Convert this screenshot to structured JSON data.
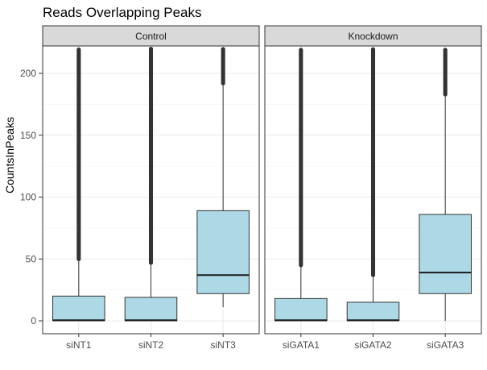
{
  "chart_data": {
    "type": "boxplot",
    "title": "Reads Overlapping Peaks",
    "ylabel": "CountsInPeaks",
    "xlabel": "",
    "ylim": [
      0,
      220
    ],
    "yticks": [
      0,
      50,
      100,
      150,
      200
    ],
    "grid": true,
    "box_fill": "#add8e6",
    "outlier_color": "#333333",
    "panels": [
      {
        "name": "Control",
        "groups": [
          {
            "label": "siNT1",
            "q1": 0,
            "median": 0.5,
            "q3": 20,
            "whisker_low": 0,
            "whisker_high": 50,
            "outlier_range": [
              50,
              220
            ]
          },
          {
            "label": "siNT2",
            "q1": 0,
            "median": 0.5,
            "q3": 19,
            "whisker_low": 0,
            "whisker_high": 47,
            "outlier_range": [
              47,
              220
            ]
          },
          {
            "label": "siNT3",
            "q1": 22,
            "median": 37,
            "q3": 89,
            "whisker_low": 11,
            "whisker_high": 192,
            "outlier_range": [
              192,
              220
            ]
          }
        ]
      },
      {
        "name": "Knockdown",
        "groups": [
          {
            "label": "siGATA1",
            "q1": 0,
            "median": 0.5,
            "q3": 18,
            "whisker_low": 0,
            "whisker_high": 45,
            "outlier_range": [
              45,
              220
            ]
          },
          {
            "label": "siGATA2",
            "q1": 0,
            "median": 0.5,
            "q3": 15,
            "whisker_low": 0,
            "whisker_high": 37,
            "outlier_range": [
              37,
              220
            ]
          },
          {
            "label": "siGATA3",
            "q1": 22,
            "median": 39,
            "q3": 86,
            "whisker_low": 0,
            "whisker_high": 183,
            "outlier_range": [
              183,
              220
            ]
          }
        ]
      }
    ]
  }
}
